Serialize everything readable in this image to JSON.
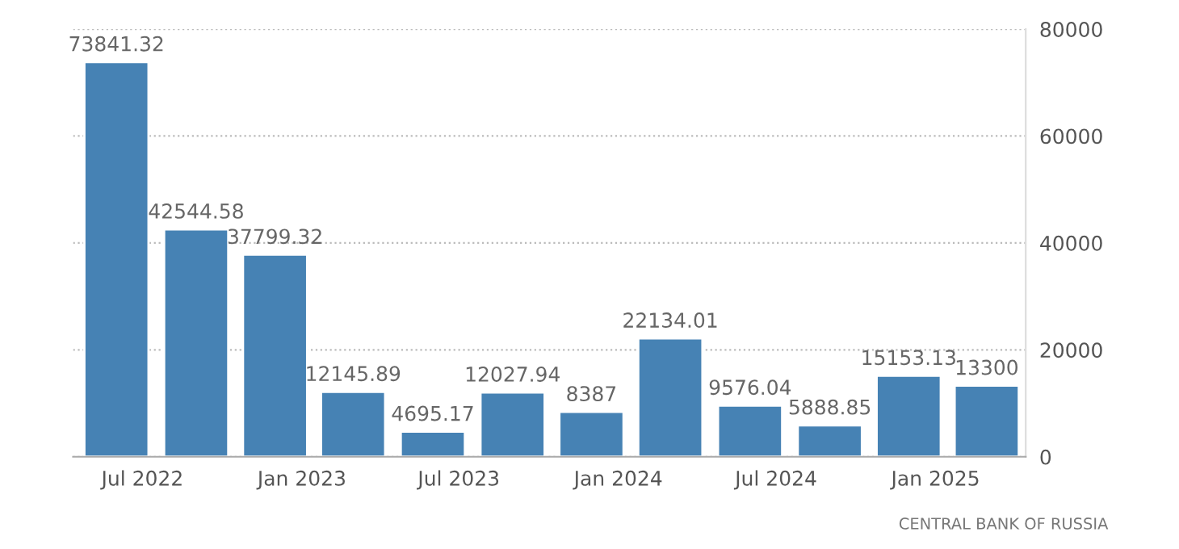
{
  "chart_data": {
    "type": "bar",
    "x": [
      "2022-06",
      "2022-09",
      "2022-12",
      "2023-03",
      "2023-06",
      "2023-09",
      "2023-12",
      "2024-03",
      "2024-06",
      "2024-09",
      "2024-12",
      "2025-03"
    ],
    "values": [
      73841.32,
      42544.58,
      37799.32,
      12145.89,
      4695.17,
      12027.94,
      8387,
      22134.01,
      9576.04,
      5888.85,
      15153.13,
      13300
    ],
    "color": "#4682b4",
    "data_labels": true,
    "xlim": [
      "2022-04-12",
      "2025-04-15"
    ],
    "xticks": [
      {
        "value": "2022-07",
        "label": "Jul 2022"
      },
      {
        "value": "2023-01",
        "label": "Jan 2023"
      },
      {
        "value": "2023-07",
        "label": "Jul 2023"
      },
      {
        "value": "2024-01",
        "label": "Jan 2024"
      },
      {
        "value": "2024-07",
        "label": "Jul 2024"
      },
      {
        "value": "2025-01",
        "label": "Jan 2025"
      }
    ],
    "ylim": [
      0,
      80000
    ],
    "yticks": [
      0,
      20000,
      40000,
      60000,
      80000
    ],
    "grid": "y",
    "annotations": [
      "CENTRAL BANK OF RUSSIA"
    ]
  }
}
